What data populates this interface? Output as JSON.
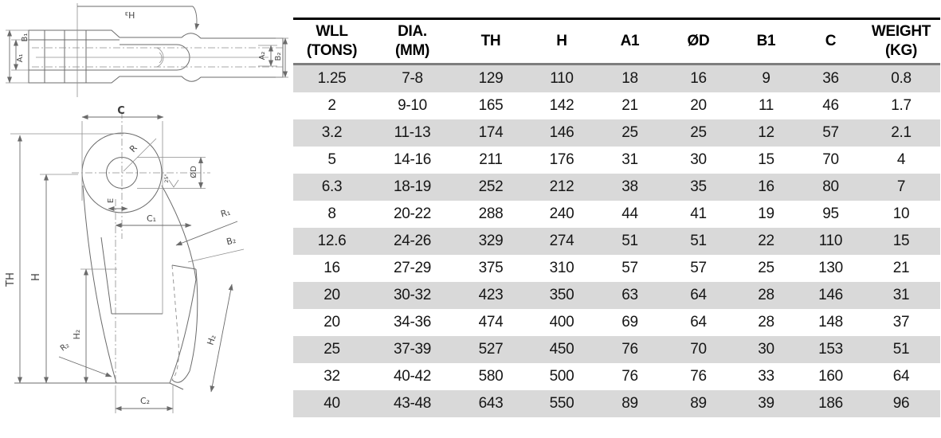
{
  "drawing": {
    "top_view": {
      "h3": "H₃",
      "b1": "B₁",
      "a1": "A₁",
      "a2": "A₂",
      "b2": "B₂"
    },
    "side_view": {
      "c": "C",
      "r": "R",
      "od": "ØD",
      "angle": "25°",
      "e": "E",
      "c1": "C₁",
      "r1": "R₁",
      "b2": "B₂",
      "th": "TH",
      "h": "H",
      "h2_body": "H₂",
      "r2": "R₂",
      "h2_wedge": "H₂",
      "c2": "C₂"
    }
  },
  "table": {
    "columns": [
      {
        "line1": "WLL",
        "line2": "(TONS)"
      },
      {
        "line1": "DIA.",
        "line2": "(MM)"
      },
      {
        "line1": "TH",
        "line2": ""
      },
      {
        "line1": "H",
        "line2": ""
      },
      {
        "line1": "A1",
        "line2": ""
      },
      {
        "line1": "ØD",
        "line2": ""
      },
      {
        "line1": "B1",
        "line2": ""
      },
      {
        "line1": "C",
        "line2": ""
      },
      {
        "line1": "WEIGHT",
        "line2": "(KG)"
      }
    ],
    "rows": [
      [
        "1.25",
        "7-8",
        "129",
        "110",
        "18",
        "16",
        "9",
        "36",
        "0.8"
      ],
      [
        "2",
        "9-10",
        "165",
        "142",
        "21",
        "20",
        "11",
        "46",
        "1.7"
      ],
      [
        "3.2",
        "11-13",
        "174",
        "146",
        "25",
        "25",
        "12",
        "57",
        "2.1"
      ],
      [
        "5",
        "14-16",
        "211",
        "176",
        "31",
        "30",
        "15",
        "70",
        "4"
      ],
      [
        "6.3",
        "18-19",
        "252",
        "212",
        "38",
        "35",
        "16",
        "80",
        "7"
      ],
      [
        "8",
        "20-22",
        "288",
        "240",
        "44",
        "41",
        "19",
        "95",
        "10"
      ],
      [
        "12.6",
        "24-26",
        "329",
        "274",
        "51",
        "51",
        "22",
        "110",
        "15"
      ],
      [
        "16",
        "27-29",
        "375",
        "310",
        "57",
        "57",
        "25",
        "130",
        "21"
      ],
      [
        "20",
        "30-32",
        "423",
        "350",
        "63",
        "64",
        "28",
        "146",
        "31"
      ],
      [
        "20",
        "34-36",
        "474",
        "400",
        "69",
        "64",
        "28",
        "148",
        "37"
      ],
      [
        "25",
        "37-39",
        "527",
        "450",
        "76",
        "70",
        "30",
        "153",
        "51"
      ],
      [
        "32",
        "40-42",
        "580",
        "500",
        "76",
        "76",
        "33",
        "160",
        "64"
      ],
      [
        "40",
        "43-48",
        "643",
        "550",
        "89",
        "89",
        "39",
        "186",
        "96"
      ]
    ]
  }
}
